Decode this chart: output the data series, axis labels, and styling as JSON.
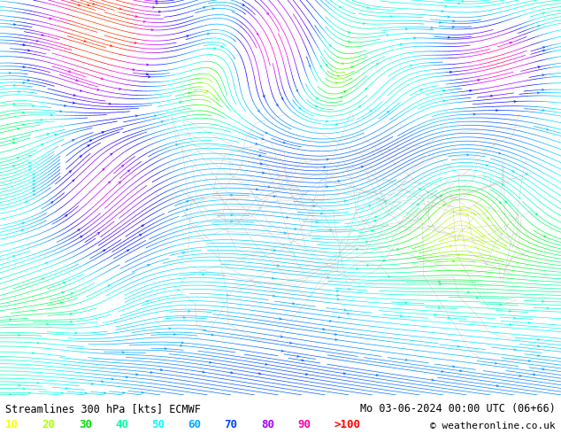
{
  "title_left": "Streamlines 300 hPa [kts] ECMWF",
  "title_right": "Mo 03-06-2024 00:00 UTC (06+66)",
  "copyright": "© weatheronline.co.uk",
  "legend_values": [
    "10",
    "20",
    "30",
    "40",
    "50",
    "60",
    "70",
    "80",
    "90",
    ">100"
  ],
  "legend_colors": [
    "#ffff00",
    "#aaff00",
    "#00dd00",
    "#00ffaa",
    "#00ffff",
    "#00aaff",
    "#0044ff",
    "#aa00ff",
    "#ff00aa",
    "#ff0000"
  ],
  "background_color": "#ffffff",
  "text_color": "#000000",
  "fig_width": 6.34,
  "fig_height": 4.9,
  "dpi": 100,
  "colormap_colors": [
    "#ffff00",
    "#ccff00",
    "#88ff00",
    "#00ff00",
    "#00ff88",
    "#00ffcc",
    "#00ffff",
    "#00ccff",
    "#0088ff",
    "#0044ff",
    "#0000ff",
    "#4400ff",
    "#8800ff",
    "#aa00ff",
    "#cc00ff",
    "#ff00ff",
    "#ff00aa",
    "#ff0066",
    "#ff0000",
    "#ff3300"
  ]
}
